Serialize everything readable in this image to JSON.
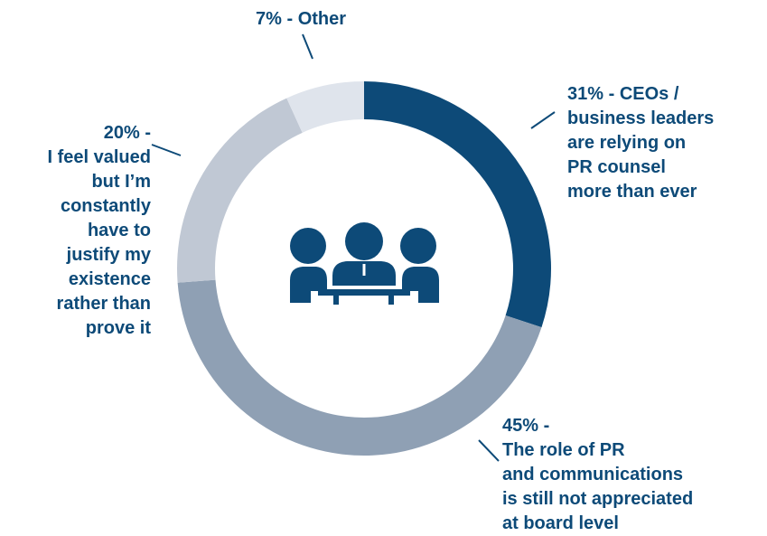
{
  "chart_data": {
    "type": "donut",
    "categories": [
      "CEOs /\nbusiness leaders\nare relying on\nPR counsel\nmore than ever",
      "The role of PR\nand communications\nis still not appreciated\nat board level",
      "I feel valued\nbut I’m\nconstantly\nhave to\njustify my\nexistence\nrather than\nprove it",
      "Other"
    ],
    "values": [
      31,
      45,
      20,
      7
    ],
    "value_labels": [
      "31% -",
      "45% -",
      "20% -",
      "7% -"
    ],
    "colors": [
      "#0d4a78",
      "#8fa0b4",
      "#c0c8d4",
      "#dfe4ec"
    ]
  }
}
